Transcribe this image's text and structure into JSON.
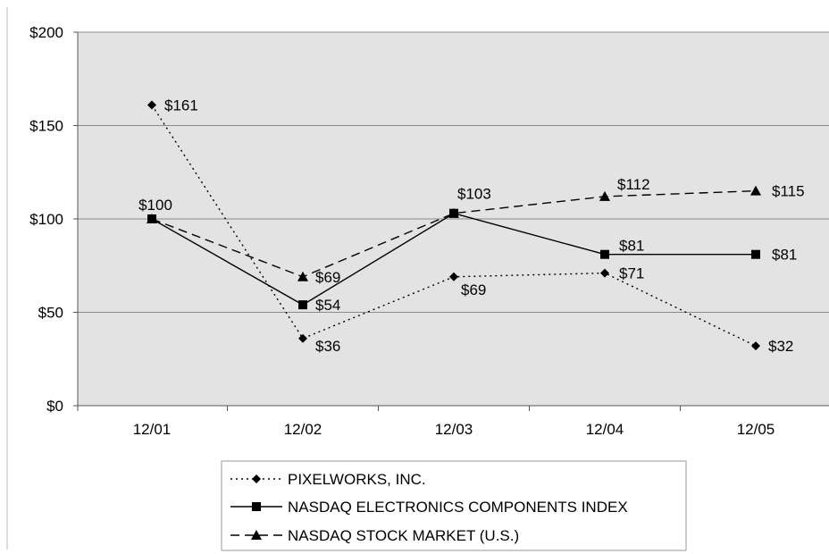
{
  "chart_data": {
    "type": "line",
    "categories": [
      "12/01",
      "12/02",
      "12/03",
      "12/04",
      "12/05"
    ],
    "ylim": [
      0,
      200
    ],
    "yticks": [
      0,
      50,
      100,
      150,
      200
    ],
    "ytick_labels": [
      "$0",
      "$50",
      "$100",
      "$150",
      "$200"
    ],
    "grid": "horizontal",
    "legend_position": "bottom",
    "plot_background": "#e3e3e3",
    "series": [
      {
        "name": "PIXELWORKS, INC.",
        "values": [
          161,
          36,
          69,
          71,
          32
        ],
        "labels": [
          "$161",
          "$36",
          "$69",
          "$71",
          "$32"
        ],
        "marker": "diamond",
        "line_style": "dotted",
        "color": "#000000"
      },
      {
        "name": "NASDAQ ELECTRONICS COMPONENTS INDEX",
        "values": [
          100,
          54,
          103,
          81,
          81
        ],
        "labels": [
          "$100",
          "$54",
          "$103",
          "$81",
          "$81"
        ],
        "marker": "square",
        "line_style": "solid",
        "color": "#000000"
      },
      {
        "name": "NASDAQ STOCK MARKET (U.S.)",
        "values": [
          100,
          69,
          103,
          112,
          115
        ],
        "labels": [
          "$100",
          "$69",
          "$103",
          "$112",
          "$115"
        ],
        "marker": "triangle",
        "line_style": "dashed",
        "color": "#000000"
      }
    ]
  }
}
